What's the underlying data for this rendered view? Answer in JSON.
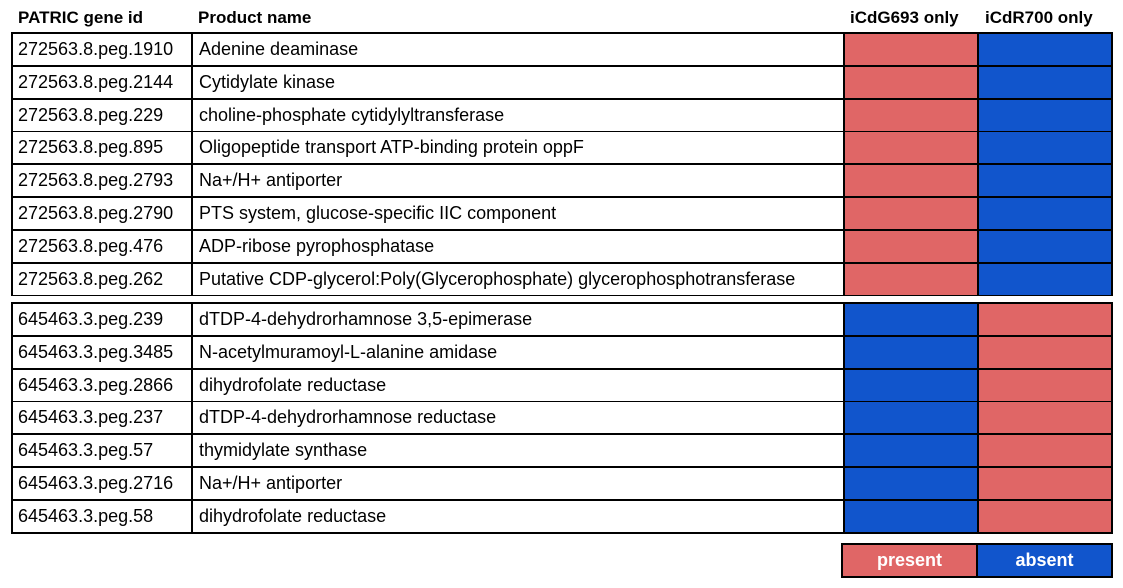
{
  "chart_data": {
    "type": "table",
    "columns": [
      "PATRIC gene id",
      "Product name",
      "iCdG693 only",
      "iCdR700 only"
    ],
    "states": {
      "present": "present",
      "absent": "absent"
    },
    "colors": {
      "present": "#e06666",
      "absent": "#1155cc"
    },
    "groups": [
      {
        "rows": [
          {
            "id": "272563.8.peg.1910",
            "name": "Adenine deaminase",
            "iCdG693": "present",
            "iCdR700": "absent"
          },
          {
            "id": "272563.8.peg.2144",
            "name": "Cytidylate kinase",
            "iCdG693": "present",
            "iCdR700": "absent"
          },
          {
            "id": "272563.8.peg.229",
            "name": "choline-phosphate cytidylyltransferase",
            "iCdG693": "present",
            "iCdR700": "absent"
          },
          {
            "id": "272563.8.peg.895",
            "name": "Oligopeptide transport ATP-binding protein oppF",
            "iCdG693": "present",
            "iCdR700": "absent"
          },
          {
            "id": "272563.8.peg.2793",
            "name": "Na+/H+ antiporter",
            "iCdG693": "present",
            "iCdR700": "absent"
          },
          {
            "id": "272563.8.peg.2790",
            "name": "PTS system, glucose-specific IIC component",
            "iCdG693": "present",
            "iCdR700": "absent"
          },
          {
            "id": "272563.8.peg.476",
            "name": "ADP-ribose pyrophosphatase",
            "iCdG693": "present",
            "iCdR700": "absent"
          },
          {
            "id": "272563.8.peg.262",
            "name": "Putative CDP-glycerol:Poly(Glycerophosphate) glycerophosphotransferase",
            "iCdG693": "present",
            "iCdR700": "absent"
          }
        ]
      },
      {
        "rows": [
          {
            "id": "645463.3.peg.239",
            "name": "dTDP-4-dehydrorhamnose 3,5-epimerase",
            "iCdG693": "absent",
            "iCdR700": "present"
          },
          {
            "id": "645463.3.peg.3485",
            "name": "N-acetylmuramoyl-L-alanine amidase",
            "iCdG693": "absent",
            "iCdR700": "present"
          },
          {
            "id": "645463.3.peg.2866",
            "name": "dihydrofolate reductase",
            "iCdG693": "absent",
            "iCdR700": "present"
          },
          {
            "id": "645463.3.peg.237",
            "name": "dTDP-4-dehydrorhamnose reductase",
            "iCdG693": "absent",
            "iCdR700": "present"
          },
          {
            "id": "645463.3.peg.57",
            "name": "thymidylate synthase",
            "iCdG693": "absent",
            "iCdR700": "present"
          },
          {
            "id": "645463.3.peg.2716",
            "name": "Na+/H+ antiporter",
            "iCdG693": "absent",
            "iCdR700": "present"
          },
          {
            "id": "645463.3.peg.58",
            "name": "dihydrofolate reductase",
            "iCdG693": "absent",
            "iCdR700": "present"
          }
        ]
      }
    ]
  }
}
